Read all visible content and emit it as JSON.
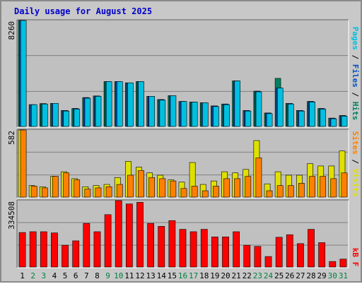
{
  "title": "Daily usage for August 2025",
  "colors": {
    "panel": "#c0c0c0",
    "grid": "#808080",
    "hits": "#008060",
    "files": "#0050c0",
    "pages": "#00c0e0",
    "visits": "#e0e000",
    "sites": "#ff8000",
    "kbytes": "#ff0000",
    "weekend": "#008040",
    "weekday": "#000000"
  },
  "chart_data": [
    {
      "type": "bar",
      "panel": "pages-files-hits",
      "max_label": "8260",
      "ylim": [
        0,
        8260
      ],
      "legend": {
        "pages": "Pages",
        "files": "Files",
        "hits": "Hits",
        "sep": "/"
      },
      "categories": [
        "1",
        "2",
        "3",
        "4",
        "5",
        "6",
        "7",
        "8",
        "9",
        "10",
        "11",
        "12",
        "13",
        "14",
        "15",
        "16",
        "17",
        "18",
        "19",
        "20",
        "21",
        "22",
        "23",
        "24",
        "25",
        "26",
        "27",
        "28",
        "29",
        "30",
        "31"
      ],
      "series": [
        {
          "name": "Hits",
          "values": [
            8260,
            1700,
            1780,
            1800,
            1250,
            1400,
            2250,
            2380,
            3500,
            3500,
            3400,
            3500,
            2350,
            2100,
            2400,
            1950,
            1900,
            1850,
            1600,
            1750,
            3550,
            1250,
            2750,
            1050,
            3750,
            1800,
            1250,
            1950,
            1400,
            650,
            850
          ]
        },
        {
          "name": "Files",
          "values": [
            8260,
            1700,
            1780,
            1800,
            1250,
            1400,
            2250,
            2380,
            3500,
            3500,
            3400,
            3500,
            2350,
            2100,
            2400,
            1950,
            1900,
            1850,
            1600,
            1750,
            3550,
            1250,
            2750,
            1050,
            3000,
            1800,
            1250,
            1950,
            1400,
            650,
            850
          ]
        },
        {
          "name": "Pages",
          "values": [
            8260,
            1700,
            1750,
            1800,
            1200,
            1350,
            2200,
            2350,
            3500,
            3500,
            3400,
            3500,
            2350,
            2050,
            2400,
            1950,
            1900,
            1850,
            1550,
            1700,
            3550,
            1200,
            2700,
            1000,
            3000,
            1750,
            1200,
            1900,
            1350,
            600,
            800
          ]
        }
      ]
    },
    {
      "type": "bar",
      "panel": "visits-sites",
      "max_label": "582",
      "ylim": [
        0,
        582
      ],
      "legend": {
        "sites": "Sites",
        "visits": "Visits",
        "sep": "/"
      },
      "categories": [
        "1",
        "2",
        "3",
        "4",
        "5",
        "6",
        "7",
        "8",
        "9",
        "10",
        "11",
        "12",
        "13",
        "14",
        "15",
        "16",
        "17",
        "18",
        "19",
        "20",
        "21",
        "22",
        "23",
        "24",
        "25",
        "26",
        "27",
        "28",
        "29",
        "30",
        "31"
      ],
      "series": [
        {
          "name": "Visits",
          "values": [
            582,
            100,
            90,
            180,
            220,
            160,
            90,
            100,
            110,
            170,
            310,
            260,
            210,
            190,
            150,
            130,
            300,
            110,
            140,
            220,
            210,
            240,
            490,
            115,
            220,
            190,
            190,
            290,
            270,
            270,
            400
          ]
        },
        {
          "name": "Sites",
          "values": [
            582,
            95,
            80,
            180,
            210,
            150,
            70,
            80,
            90,
            110,
            190,
            230,
            170,
            160,
            140,
            75,
            95,
            55,
            95,
            160,
            160,
            180,
            340,
            55,
            100,
            100,
            120,
            180,
            180,
            160,
            210
          ]
        }
      ]
    },
    {
      "type": "bar",
      "panel": "kbytes",
      "max_label": "334508",
      "ylim": [
        0,
        334508
      ],
      "legend": {
        "kbytes": "kB",
        "sep": "F"
      },
      "categories": [
        "1",
        "2",
        "3",
        "4",
        "5",
        "6",
        "7",
        "8",
        "9",
        "10",
        "11",
        "12",
        "13",
        "14",
        "15",
        "16",
        "17",
        "18",
        "19",
        "20",
        "21",
        "22",
        "23",
        "24",
        "25",
        "26",
        "27",
        "28",
        "29",
        "30",
        "31"
      ],
      "series": [
        {
          "name": "KBytes",
          "values": [
            174000,
            178000,
            178000,
            172000,
            110000,
            132000,
            220000,
            178000,
            264000,
            334508,
            318000,
            326000,
            220000,
            205000,
            234000,
            190000,
            178000,
            190000,
            152000,
            152000,
            178000,
            110000,
            104000,
            53000,
            150000,
            163000,
            118000,
            190000,
            123000,
            28000,
            40000
          ]
        }
      ]
    }
  ]
}
